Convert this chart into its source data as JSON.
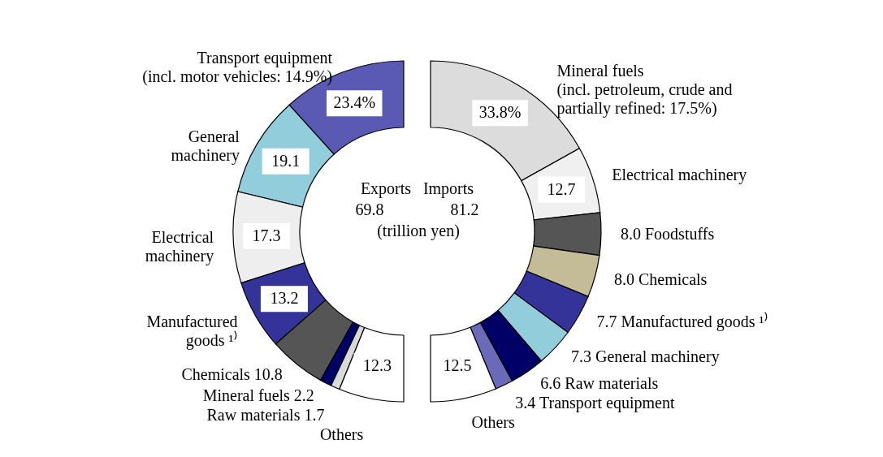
{
  "chart_data": [
    {
      "type": "donut",
      "title": "Exports",
      "annotations": [
        "69.8",
        "(trillion yen)"
      ],
      "categories": [
        "Transport equipment (incl. motor vehicles: 14.9%)",
        "General machinery",
        "Electrical machinery",
        "Manufactured goods ¹⁾",
        "Chemicals",
        "Mineral fuels",
        "Raw materials",
        "Others"
      ],
      "values": [
        23.4,
        19.1,
        17.3,
        13.2,
        10.8,
        2.2,
        1.7,
        12.3
      ],
      "value_labels": [
        "23.4%",
        "19.1",
        "17.3",
        "13.2",
        "10.8",
        "2.2",
        "1.7",
        "12.3"
      ],
      "colors": [
        "#5a5ab4",
        "#92cddc",
        "#eeeeee",
        "#333399",
        "#555555",
        "#000066",
        "#d9d9d9",
        "#ffffff"
      ]
    },
    {
      "type": "donut",
      "title": "Imports",
      "annotations": [
        "81.2"
      ],
      "categories": [
        "Mineral fuels (incl. petroleum, crude and partially refined: 17.5%)",
        "Electrical machinery",
        "Foodstuffs",
        "Chemicals",
        "Manufactured goods ¹⁾",
        "General machinery",
        "Raw materials",
        "Transport equipment",
        "Others"
      ],
      "values": [
        33.8,
        12.7,
        8.0,
        8.0,
        7.7,
        7.3,
        6.6,
        3.4,
        12.5
      ],
      "value_labels": [
        "33.8%",
        "12.7",
        "8.0",
        "8.0",
        "7.7",
        "7.3",
        "6.6",
        "3.4",
        "12.5"
      ],
      "colors": [
        "#dcdcdc",
        "#f0f0f0",
        "#555555",
        "#c4bc96",
        "#333399",
        "#92cddc",
        "#000066",
        "#6a6ab8",
        "#ffffff"
      ]
    }
  ]
}
